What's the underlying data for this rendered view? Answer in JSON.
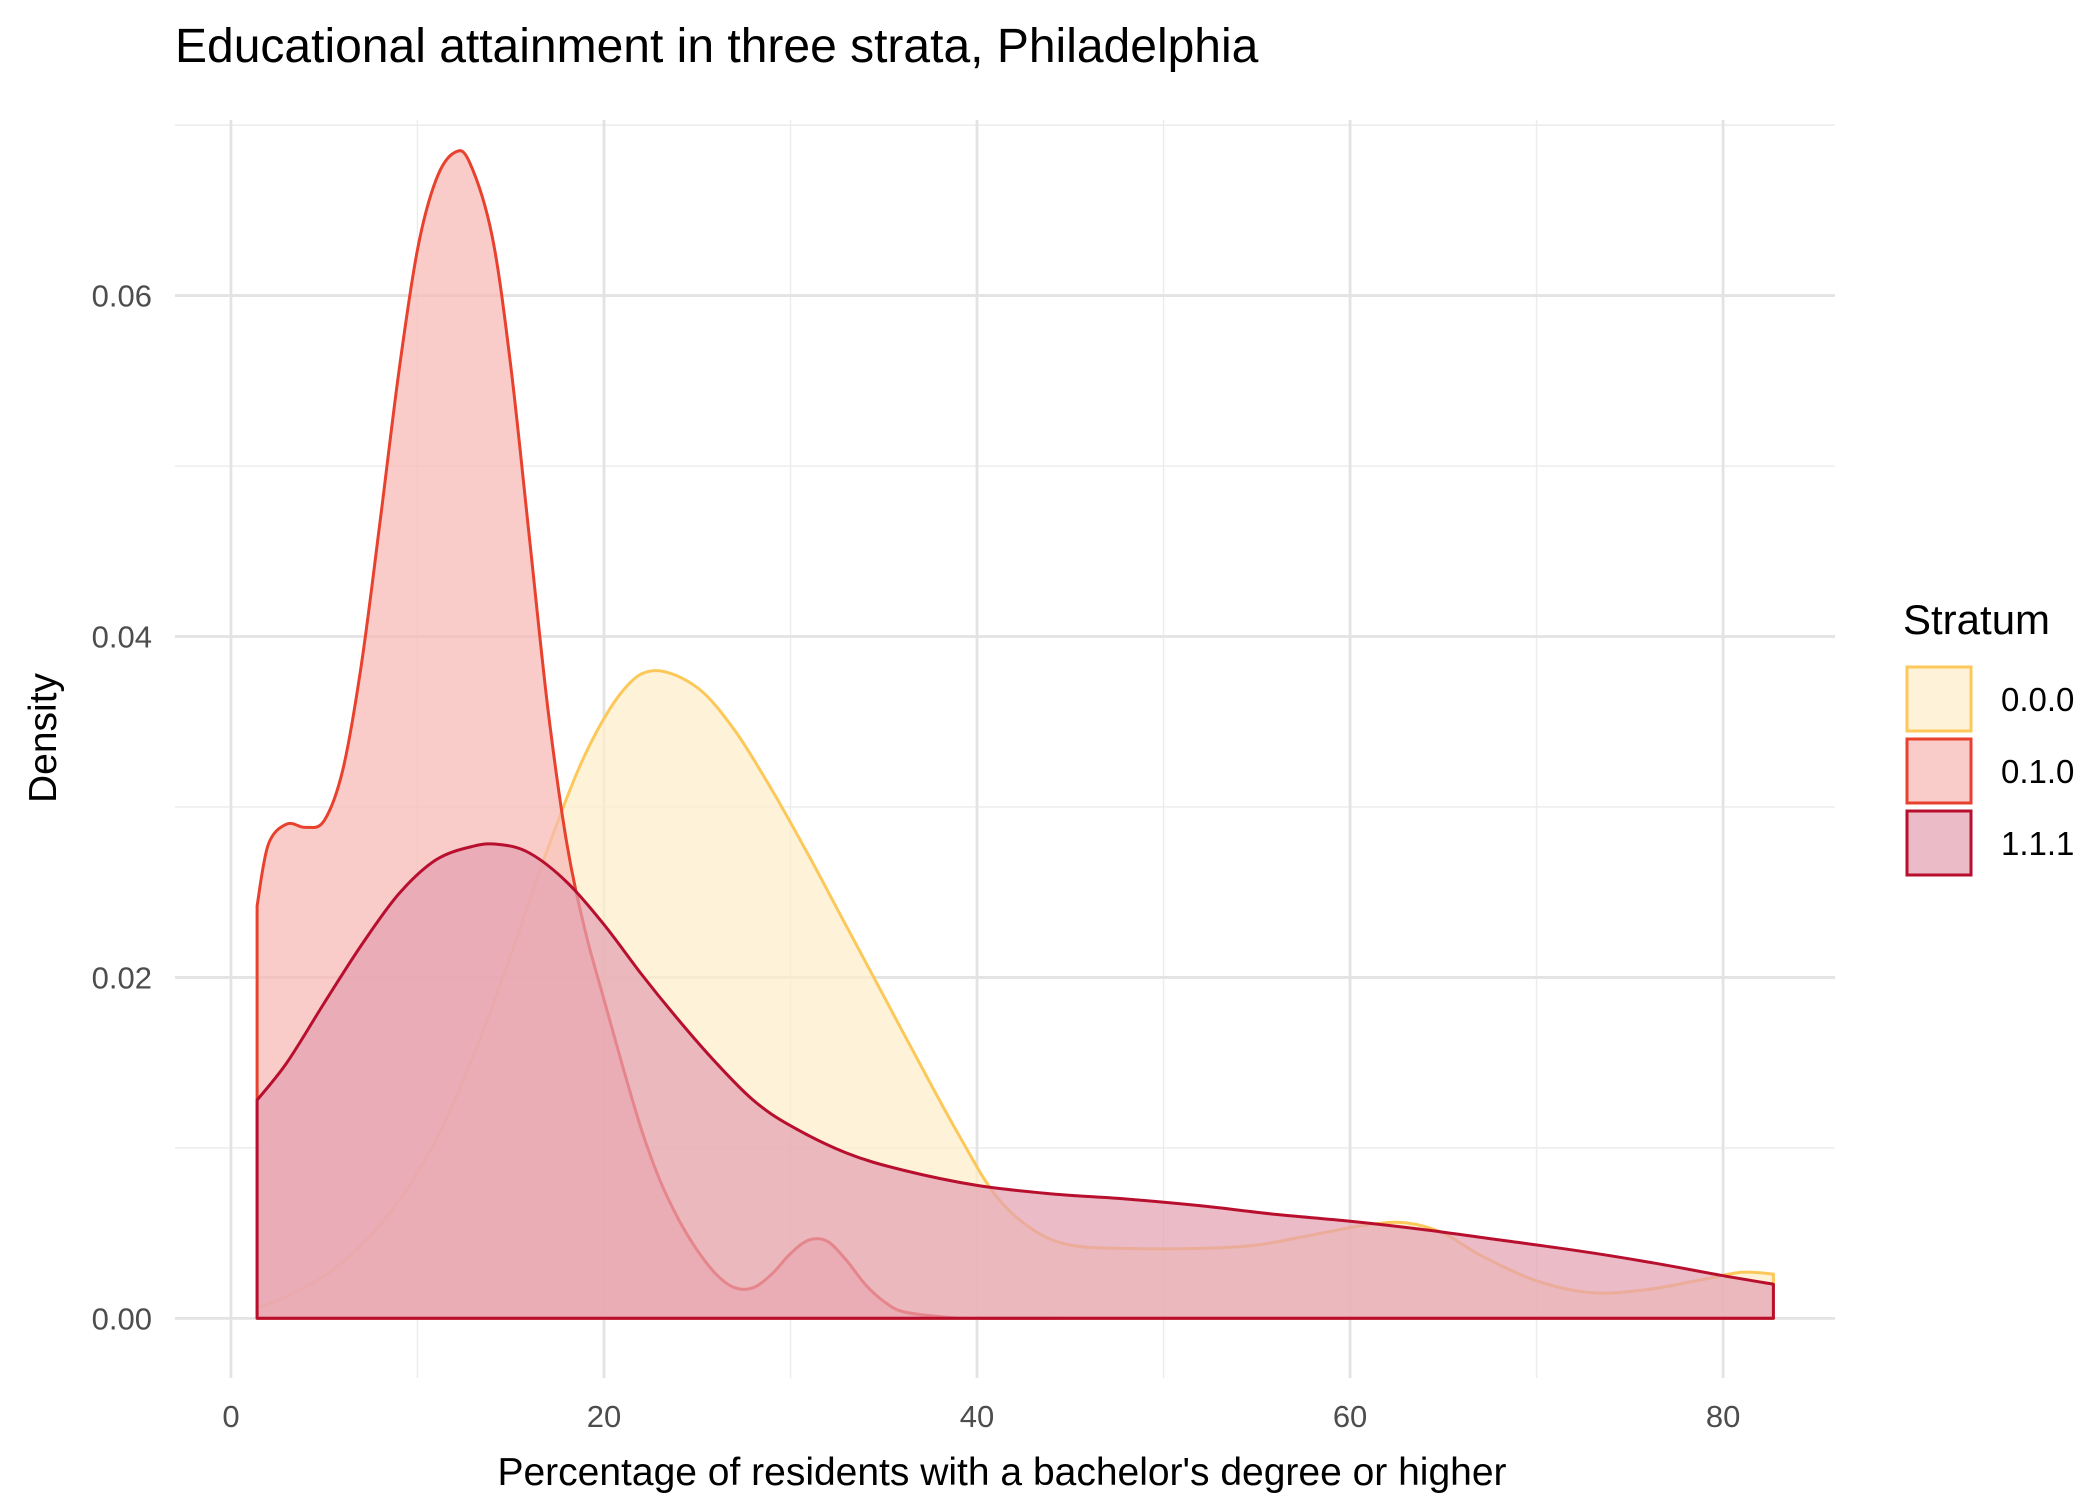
{
  "chart_data": {
    "type": "area",
    "title": "Educational attainment in three strata, Philadelphia",
    "xlabel": "Percentage of residents with a bachelor's degree or higher",
    "ylabel": "Density",
    "xlim": [
      -3,
      86
    ],
    "ylim": [
      -0.0035,
      0.0703
    ],
    "x_ticks": [
      0,
      20,
      40,
      60,
      80
    ],
    "x_tick_labels": [
      "0",
      "20",
      "40",
      "60",
      "80"
    ],
    "y_ticks": [
      0,
      0.02,
      0.04,
      0.06
    ],
    "y_tick_labels": [
      "0.00",
      "0.02",
      "0.04",
      "0.06"
    ],
    "grid": true,
    "legend": {
      "title": "Stratum",
      "position": "right"
    },
    "series": [
      {
        "name": "0.0.0",
        "fill": "#FDEFCB",
        "stroke": "#FDC85A",
        "x": [
          1.4,
          3,
          5,
          7,
          9,
          11,
          13,
          15,
          17,
          19,
          21,
          22.7,
          25,
          27,
          29,
          31,
          33,
          35,
          37,
          39,
          41,
          43,
          45,
          48,
          52,
          55,
          58,
          61,
          63,
          65,
          67,
          70,
          73,
          76,
          79,
          81,
          82.7
        ],
        "y": [
          0.0006,
          0.0013,
          0.0025,
          0.0043,
          0.0069,
          0.0105,
          0.0154,
          0.0213,
          0.0276,
          0.0331,
          0.0368,
          0.038,
          0.037,
          0.0345,
          0.031,
          0.0271,
          0.023,
          0.0189,
          0.0148,
          0.0108,
          0.0072,
          0.0052,
          0.0043,
          0.0041,
          0.0041,
          0.0043,
          0.0049,
          0.0055,
          0.0056,
          0.005,
          0.0037,
          0.0022,
          0.0015,
          0.0017,
          0.0023,
          0.0027,
          0.0026
        ]
      },
      {
        "name": "0.1.0",
        "fill": "#F7B9B4",
        "stroke": "#E8412E",
        "x": [
          1.4,
          2,
          3,
          4,
          5,
          6,
          7,
          8,
          9,
          10,
          11,
          12,
          12.8,
          14,
          15,
          16,
          17,
          18,
          19,
          20,
          21,
          22,
          23,
          24,
          25,
          26,
          27,
          28,
          29,
          30,
          31,
          32,
          33,
          34,
          35,
          36,
          38,
          40,
          45,
          50,
          60,
          70,
          82.7
        ],
        "y": [
          0.0242,
          0.0278,
          0.029,
          0.0288,
          0.0292,
          0.0322,
          0.0384,
          0.0468,
          0.0555,
          0.0627,
          0.0668,
          0.0684,
          0.0678,
          0.0635,
          0.0559,
          0.0458,
          0.0357,
          0.0279,
          0.0227,
          0.0187,
          0.0148,
          0.0111,
          0.0081,
          0.0058,
          0.004,
          0.0026,
          0.0018,
          0.0018,
          0.0026,
          0.0038,
          0.0046,
          0.0045,
          0.0034,
          0.002,
          0.001,
          0.0004,
          0.0001,
          0.0,
          0.0,
          0.0,
          0.0,
          0.0,
          0.0
        ]
      },
      {
        "name": "1.1.1",
        "fill": "#E3A1B1",
        "stroke": "#B80F2F",
        "x": [
          1.4,
          3,
          5,
          7,
          9,
          11,
          13,
          14.4,
          16,
          18,
          20,
          22,
          24,
          26,
          28,
          30,
          33,
          36,
          40,
          44,
          48,
          52,
          56,
          60,
          64,
          68,
          72,
          76,
          80,
          82.7
        ],
        "y": [
          0.0128,
          0.015,
          0.0185,
          0.0219,
          0.0249,
          0.0269,
          0.0277,
          0.0278,
          0.0273,
          0.0256,
          0.0231,
          0.0202,
          0.0175,
          0.015,
          0.0128,
          0.0113,
          0.0097,
          0.0087,
          0.0078,
          0.0073,
          0.007,
          0.0066,
          0.0061,
          0.0057,
          0.0052,
          0.0046,
          0.004,
          0.0033,
          0.0025,
          0.002
        ]
      }
    ]
  }
}
